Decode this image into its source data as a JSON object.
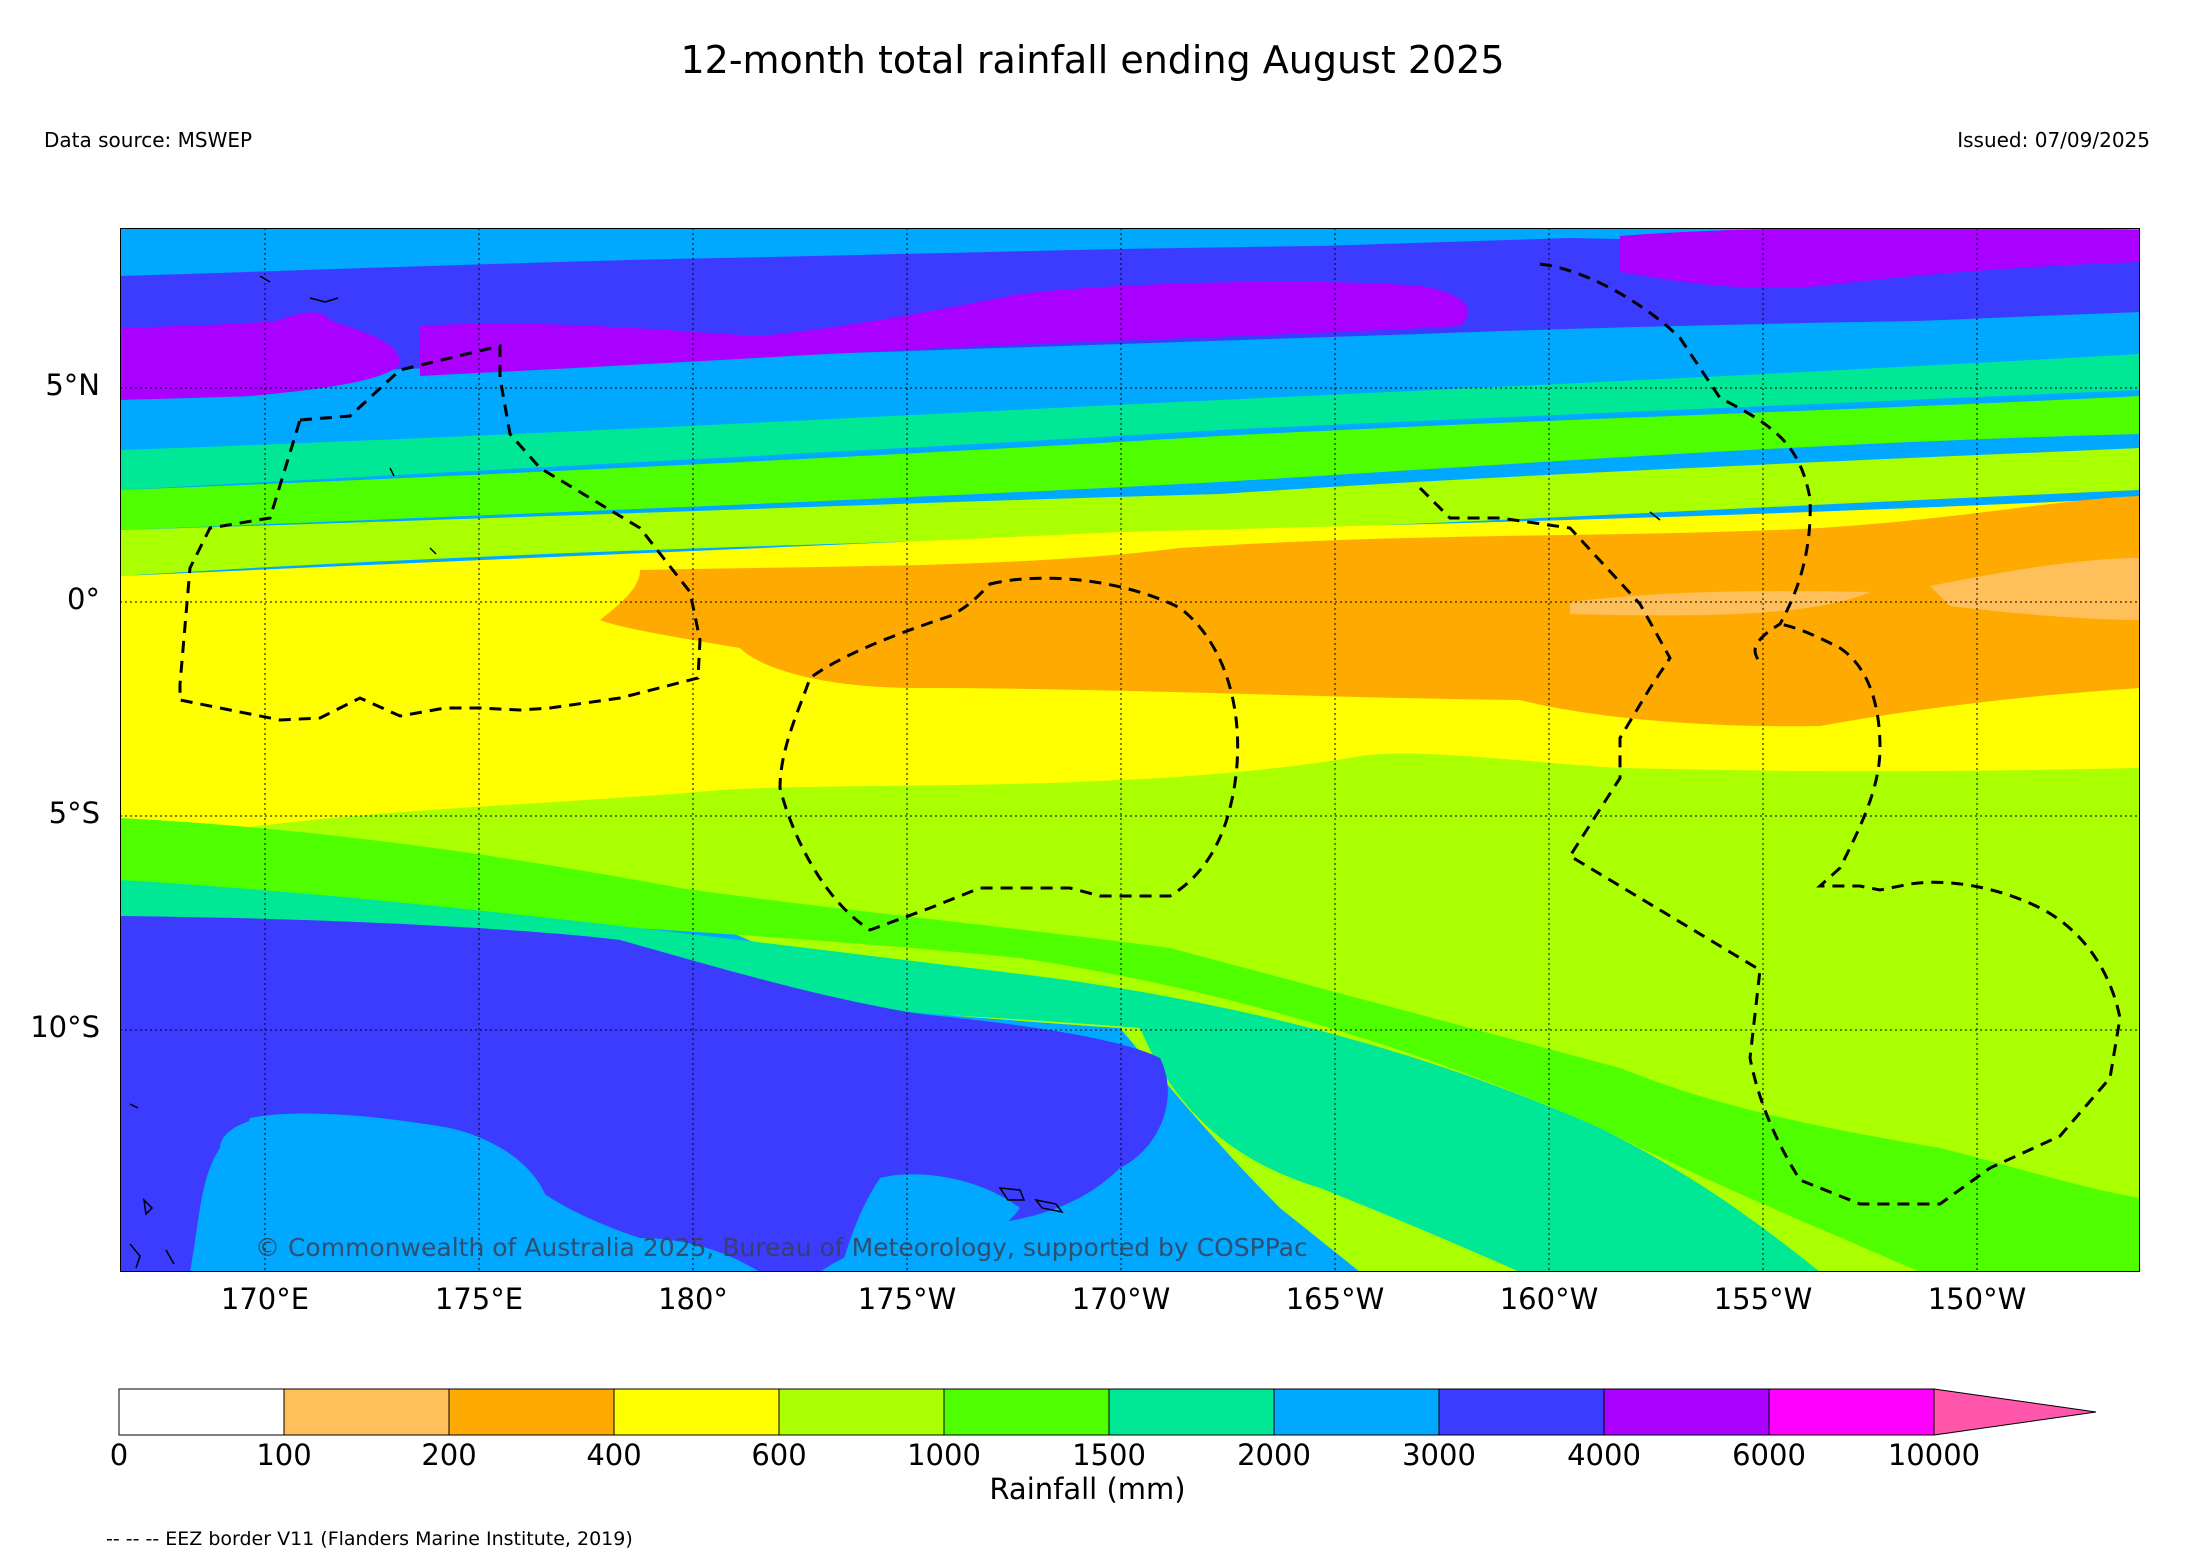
{
  "title": "12-month total rainfall ending August 2025",
  "data_source": "Data source: MSWEP",
  "issued": "Issued: 07/09/2025",
  "copyright": "© Commonwealth of Australia 2025, Bureau of Meteorology, supported by COSPPac",
  "eez_note": "-- -- -- EEZ border V11 (Flanders Marine Institute, 2019)",
  "map": {
    "lat_labels": [
      "5°N",
      "0°",
      "5°S",
      "10°S"
    ],
    "lon_labels": [
      "170°E",
      "175°E",
      "180°",
      "175°W",
      "170°W",
      "165°W",
      "160°W",
      "155°W",
      "150°W"
    ]
  },
  "colorbar": {
    "label": "Rainfall (mm)",
    "ticks": [
      "0",
      "100",
      "200",
      "400",
      "600",
      "1000",
      "1500",
      "2000",
      "3000",
      "4000",
      "6000",
      "10000"
    ],
    "colors": [
      "#ffffff",
      "#ffbf5a",
      "#ffaa00",
      "#ffff00",
      "#aaff00",
      "#4fff00",
      "#00e896",
      "#00a8ff",
      "#3c3cff",
      "#aa00ff",
      "#ff00ff",
      "#ff55aa"
    ]
  }
}
